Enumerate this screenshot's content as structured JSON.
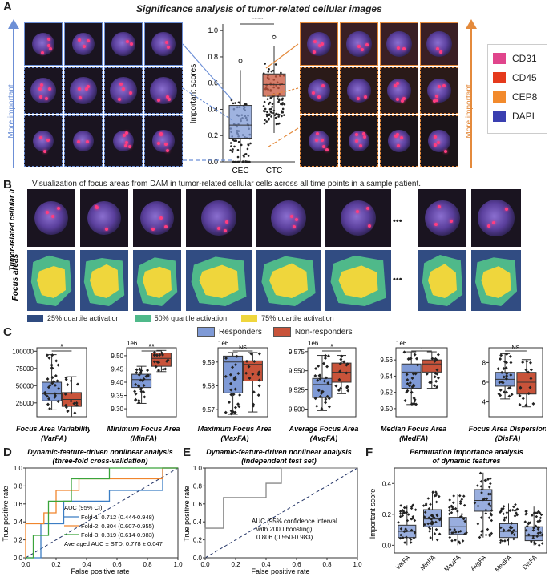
{
  "panel_a": {
    "letter": "A",
    "title": "Significance analysis of tumor-related cellular images",
    "left_axis_label": "More important",
    "right_axis_label": "More important",
    "significance": "****",
    "legend": [
      {
        "label": "CD31",
        "color": "#e0458c"
      },
      {
        "label": "CD45",
        "color": "#e53a1c"
      },
      {
        "label": "CEP8",
        "color": "#f28a2c"
      },
      {
        "label": "DAPI",
        "color": "#3a3fb0"
      }
    ],
    "chart": {
      "ylabel": "Important scores",
      "yticks": [
        "0.0",
        "0.2",
        "0.4",
        "0.6",
        "0.8",
        "1.0"
      ],
      "categories": [
        "CEC",
        "CTC"
      ]
    }
  },
  "panel_b": {
    "letter": "B",
    "caption": "Visualization of focus areas from DAM in tumor-related cellular cells across all time points in a sample patient.",
    "row1_label": "Tumor-related cellular images",
    "row2_label": "Focus areas",
    "ellipsis": "•••",
    "legend": [
      {
        "label": "25% quartile activation",
        "color": "#2f4b80"
      },
      {
        "label": "50% quartile activation",
        "color": "#4fb98a"
      },
      {
        "label": "75% quartile activation",
        "color": "#efd63c"
      }
    ]
  },
  "panel_c": {
    "letter": "C",
    "legend": [
      {
        "label": "Responders",
        "color": "#7f9ad6"
      },
      {
        "label": "Non-responders",
        "color": "#c8533a"
      }
    ],
    "plots": [
      {
        "title": "Focus Area Variability",
        "abbr": "(VarFA)",
        "sig": "*",
        "exp": "",
        "yticks": [
          "25000",
          "50000",
          "75000",
          "100000"
        ]
      },
      {
        "title": "Minimum Focus Area",
        "abbr": "(MinFA)",
        "sig": "**",
        "exp": "1e6",
        "yticks": [
          "9.30",
          "9.35",
          "9.40",
          "9.45",
          "9.50"
        ]
      },
      {
        "title": "Maximum Focus Area",
        "abbr": "(MaxFA)",
        "sig": "NS",
        "exp": "1e6",
        "yticks": [
          "9.57",
          "9.58",
          "9.59"
        ]
      },
      {
        "title": "Average Focus Area",
        "abbr": "(AvgFA)",
        "sig": "*",
        "exp": "1e6",
        "yticks": [
          "9.500",
          "9.525",
          "9.550",
          "9.575"
        ]
      },
      {
        "title": "Median Focus Area",
        "abbr": "(MedFA)",
        "sig": ".",
        "exp": "1e6",
        "yticks": [
          "9.50",
          "9.52",
          "9.54",
          "9.56"
        ]
      },
      {
        "title": "Focus Area Dispersion",
        "abbr": "(DisFA)",
        "sig": "NS",
        "exp": "",
        "yticks": [
          "4",
          "6",
          "8"
        ]
      }
    ]
  },
  "panel_d": {
    "letter": "D",
    "title1": "Dynamic-feature-driven nonlinear analysis",
    "title2": "(three-fold cross-validation)",
    "xlabel": "False positive rate",
    "ylabel": "True positive rate",
    "ticks": [
      "0.0",
      "0.2",
      "0.4",
      "0.6",
      "0.8",
      "1.0"
    ],
    "legend_title": "AUC (95% CI):",
    "legend": [
      {
        "label": "Fold-1: 0.712 (0.444-0.948)",
        "color": "#3b7dc4"
      },
      {
        "label": "Fold-2: 0.804 (0.607-0.955)",
        "color": "#f0852c"
      },
      {
        "label": "Fold-3: 0.819 (0.614-0.983)",
        "color": "#3aa43a"
      }
    ],
    "avg": "Averaged AUC ± STD: 0.778 ± 0.047"
  },
  "panel_e": {
    "letter": "E",
    "title1": "Dynamic-feature-driven nonlinear analysis",
    "title2": "(independent test set)",
    "xlabel": "False positive rate",
    "ylabel": "True positive rate",
    "ticks": [
      "0.0",
      "0.2",
      "0.4",
      "0.6",
      "0.8",
      "1.0"
    ],
    "note1": "AUC (95% confidence interval",
    "note2": "with 2000 boosting):",
    "note3": "0.806 (0.550-0.983)"
  },
  "panel_f": {
    "letter": "F",
    "title1": "Permutation importance analysis",
    "title2": "of dynamic features",
    "ylabel": "Important score",
    "yticks": [
      "0.0",
      "0.2",
      "0.4"
    ],
    "categories": [
      "VarFA",
      "MinFA",
      "MaxFA",
      "AvgFA",
      "MedFA",
      "DisFA"
    ]
  },
  "chart_data": [
    {
      "type": "box",
      "panel": "A",
      "categories": [
        "CEC",
        "CTC"
      ],
      "medians": [
        0.28,
        0.59
      ],
      "q1": [
        0.18,
        0.5
      ],
      "q3": [
        0.43,
        0.67
      ],
      "whisker_low": [
        0.0,
        0.22
      ],
      "whisker_high": [
        0.7,
        0.88
      ],
      "ylim": [
        0,
        1.05
      ],
      "ylabel": "Important scores"
    },
    {
      "type": "line",
      "panel": "D",
      "series": [
        {
          "name": "Fold-1",
          "x": [
            0,
            0.1,
            0.1,
            0.25,
            0.25,
            0.55,
            0.55,
            0.9,
            0.9,
            1.0
          ],
          "y": [
            0,
            0,
            0.38,
            0.38,
            0.63,
            0.63,
            0.75,
            0.75,
            1,
            1
          ]
        },
        {
          "name": "Fold-2",
          "x": [
            0,
            0,
            0.12,
            0.12,
            0.2,
            0.2,
            0.35,
            0.35,
            0.9,
            0.9,
            1.0
          ],
          "y": [
            0,
            0.38,
            0.38,
            0.5,
            0.5,
            0.75,
            0.75,
            0.88,
            0.88,
            1,
            1
          ]
        },
        {
          "name": "Fold-3",
          "x": [
            0,
            0.05,
            0.05,
            0.15,
            0.15,
            0.3,
            0.3,
            0.55,
            0.55,
            1.0
          ],
          "y": [
            0,
            0,
            0.25,
            0.25,
            0.63,
            0.63,
            0.88,
            0.88,
            1,
            1
          ]
        }
      ],
      "xlim": [
        0,
        1
      ],
      "ylim": [
        0,
        1
      ]
    },
    {
      "type": "line",
      "panel": "E",
      "series": [
        {
          "name": "ROC",
          "x": [
            0,
            0,
            0.12,
            0.12,
            0.4,
            0.4,
            0.5,
            0.5,
            1.0
          ],
          "y": [
            0,
            0.33,
            0.33,
            0.67,
            0.67,
            0.83,
            0.83,
            1,
            1
          ]
        }
      ],
      "xlim": [
        0,
        1
      ],
      "ylim": [
        0,
        1
      ]
    },
    {
      "type": "box",
      "panel": "F",
      "categories": [
        "VarFA",
        "MinFA",
        "MaxFA",
        "AvgFA",
        "MedFA",
        "DisFA"
      ],
      "medians": [
        0.09,
        0.17,
        0.12,
        0.29,
        0.09,
        0.06
      ],
      "q1": [
        0.05,
        0.12,
        0.07,
        0.22,
        0.05,
        0.03
      ],
      "q3": [
        0.13,
        0.23,
        0.18,
        0.36,
        0.14,
        0.12
      ],
      "whisker_low": [
        0.0,
        0.03,
        0.0,
        0.05,
        0.0,
        0.0
      ],
      "whisker_high": [
        0.26,
        0.35,
        0.33,
        0.47,
        0.27,
        0.25
      ],
      "ylim": [
        -0.05,
        0.5
      ],
      "ylabel": "Important score"
    }
  ]
}
